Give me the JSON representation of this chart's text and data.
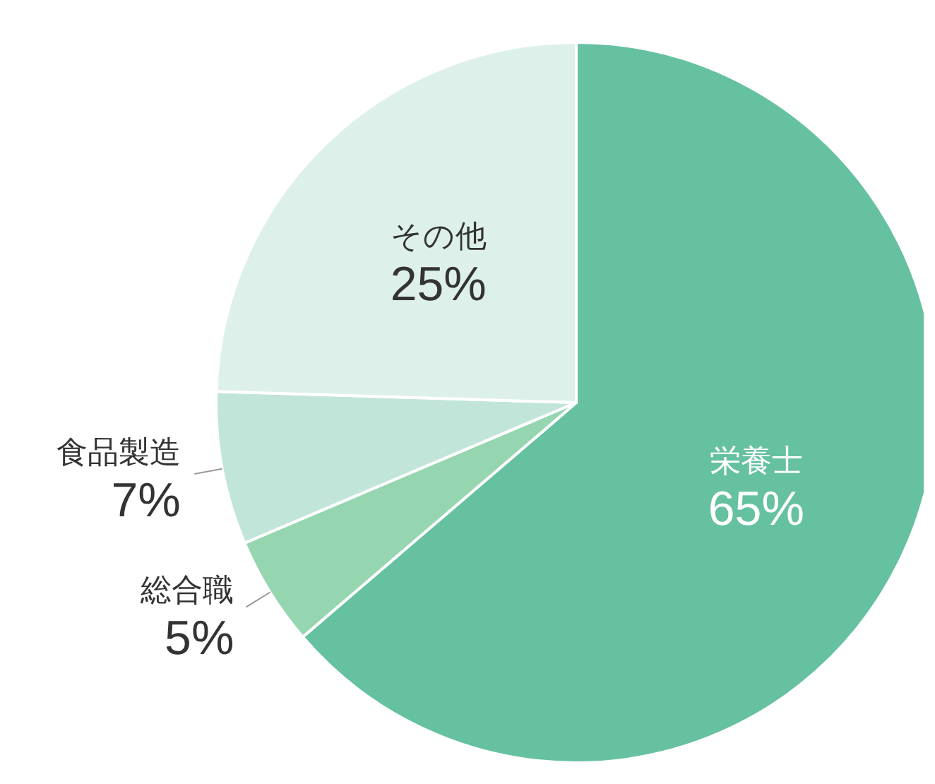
{
  "chart_data": {
    "type": "pie",
    "categories": [
      "栄養士",
      "総合職",
      "食品製造",
      "その他"
    ],
    "values": [
      65,
      5,
      7,
      25
    ],
    "value_labels": [
      "65%",
      "5%",
      "7%",
      "25%"
    ],
    "colors": [
      "#66c1a0",
      "#95d5b0",
      "#c2e5d9",
      "#ddf1ea"
    ]
  }
}
